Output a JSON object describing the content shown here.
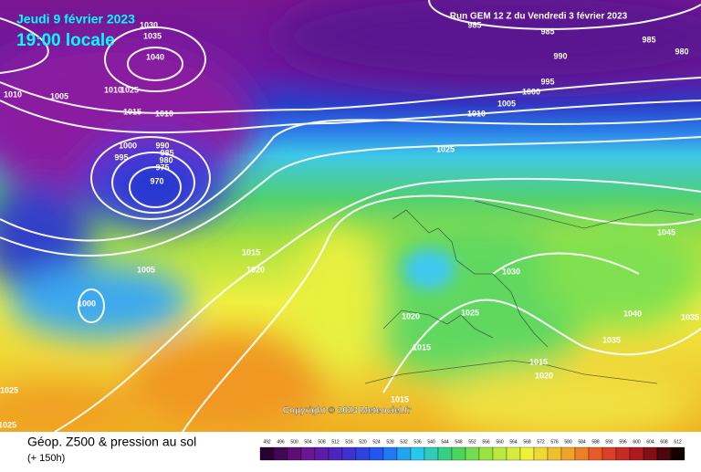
{
  "header": {
    "date": "Jeudi 9 février 2023",
    "time": "19:00 locale",
    "run_info": "Run GEM 12 Z du Vendredi 3 février 2023"
  },
  "copyright": "Copyright © 2023 Meteociel.fr",
  "footer": {
    "title": "Géop. Z500 & pression au sol",
    "lead": "(+ 150h)"
  },
  "isobar_labels": [
    1030,
    1035,
    1040,
    1010,
    1005,
    1010,
    1025,
    1015,
    1010,
    1000,
    995,
    990,
    985,
    980,
    975,
    970,
    1005,
    1000,
    1015,
    1020,
    985,
    985,
    990,
    985,
    980,
    995,
    1000,
    1005,
    1010,
    1025,
    1045,
    1030,
    1020,
    1025,
    1015,
    1040,
    1035,
    1035,
    1015,
    1020,
    1015,
    1025,
    1025
  ],
  "colorbar": {
    "labels": [
      492,
      496,
      500,
      504,
      508,
      512,
      516,
      520,
      524,
      528,
      532,
      536,
      540,
      544,
      548,
      552,
      556,
      560,
      564,
      568,
      572,
      576,
      580,
      584,
      588,
      592,
      596,
      600,
      604,
      608,
      612
    ]
  }
}
